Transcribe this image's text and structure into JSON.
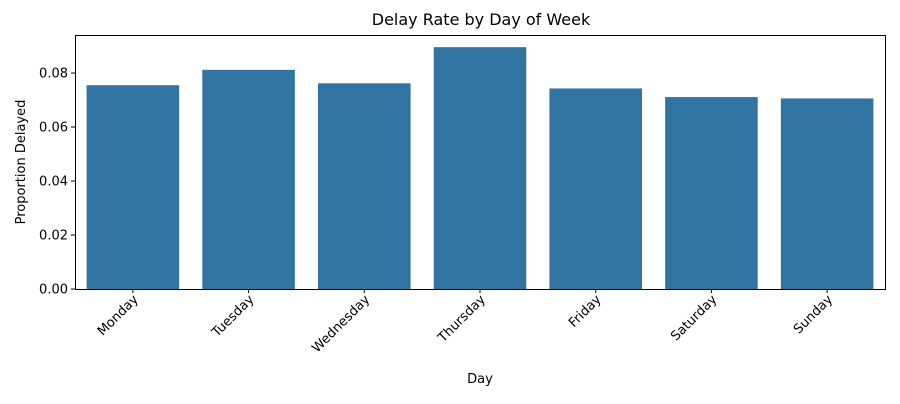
{
  "chart_data": {
    "type": "bar",
    "title": "Delay Rate by Day of Week",
    "xlabel": "Day",
    "ylabel": "Proportion Delayed",
    "categories": [
      "Monday",
      "Tuesday",
      "Wednesday",
      "Thursday",
      "Friday",
      "Saturday",
      "Sunday"
    ],
    "values": [
      0.0755,
      0.0812,
      0.0762,
      0.0896,
      0.0743,
      0.0711,
      0.0706
    ],
    "ylim": [
      0,
      0.0941
    ],
    "yticks": [
      0.0,
      0.02,
      0.04,
      0.06,
      0.08
    ],
    "ytick_labels": [
      "0.00",
      "0.02",
      "0.04",
      "0.06",
      "0.08"
    ],
    "bar_color": "#3274a1",
    "grid": false,
    "legend": "none"
  }
}
